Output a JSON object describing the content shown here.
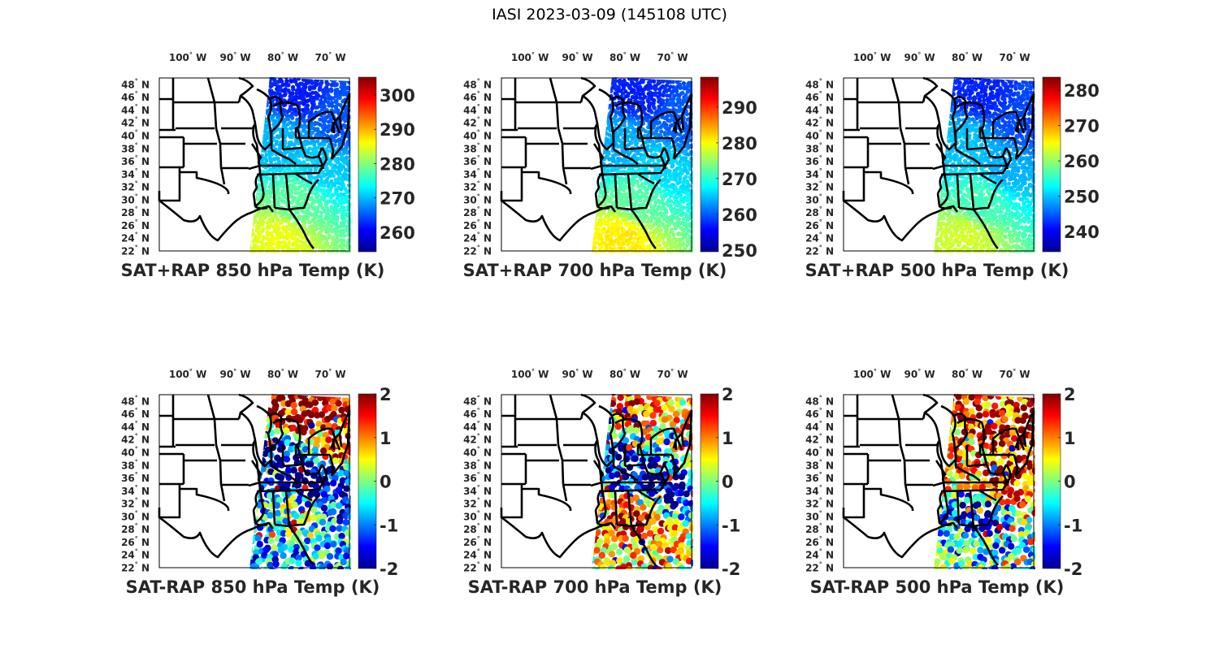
{
  "figure": {
    "title": "IASI 2023-03-09 (145108 UTC)"
  },
  "chart_data": [
    {
      "type": "heatmap",
      "kind": "satellite-swath-map",
      "title": "SAT+RAP 850 hPa Temp (K)",
      "xlabel": "",
      "ylabel": "",
      "x_ticks": [
        "100° W",
        "90° W",
        "80° W",
        "70° W"
      ],
      "x_tick_values": [
        -100,
        -90,
        -80,
        -70
      ],
      "y_ticks": [
        "48° N",
        "46° N",
        "44° N",
        "42° N",
        "40° N",
        "38° N",
        "36° N",
        "34° N",
        "32° N",
        "30° N",
        "28° N",
        "26° N",
        "24° N",
        "22° N"
      ],
      "y_tick_values": [
        48,
        46,
        44,
        42,
        40,
        38,
        36,
        34,
        32,
        30,
        28,
        26,
        24,
        22
      ],
      "lon_range": [
        -106,
        -66
      ],
      "lat_range": [
        22,
        49
      ],
      "colormap": "jet",
      "clim": [
        254.3,
        305.2
      ],
      "colorbar_ticks": [
        260,
        270,
        280,
        290,
        300
      ],
      "swath_field": {
        "north": 262,
        "northeast": 265,
        "mid_lakes": 270,
        "mid_atlantic": 271,
        "southeast": 278,
        "gulf_south": 285
      },
      "grid": false
    },
    {
      "type": "heatmap",
      "kind": "satellite-swath-map",
      "title": "SAT+RAP 700 hPa Temp (K)",
      "xlabel": "",
      "ylabel": "",
      "x_ticks": [
        "100° W",
        "90° W",
        "80° W",
        "70° W"
      ],
      "x_tick_values": [
        -100,
        -90,
        -80,
        -70
      ],
      "y_ticks": [
        "48° N",
        "46° N",
        "44° N",
        "42° N",
        "40° N",
        "38° N",
        "36° N",
        "34° N",
        "32° N",
        "30° N",
        "28° N",
        "26° N",
        "24° N",
        "22° N"
      ],
      "y_tick_values": [
        48,
        46,
        44,
        42,
        40,
        38,
        36,
        34,
        32,
        30,
        28,
        26,
        24,
        22
      ],
      "lon_range": [
        -106,
        -66
      ],
      "lat_range": [
        22,
        49
      ],
      "colormap": "jet",
      "clim": [
        249.5,
        298.4
      ],
      "colorbar_ticks": [
        250,
        260,
        270,
        280,
        290
      ],
      "swath_field": {
        "north": 257,
        "northeast": 260,
        "mid_lakes": 264,
        "mid_atlantic": 266,
        "southeast": 272,
        "gulf_south": 281
      },
      "grid": false
    },
    {
      "type": "heatmap",
      "kind": "satellite-swath-map",
      "title": "SAT+RAP 500 hPa Temp (K)",
      "xlabel": "",
      "ylabel": "",
      "x_ticks": [
        "100° W",
        "90° W",
        "80° W",
        "70° W"
      ],
      "x_tick_values": [
        -100,
        -90,
        -80,
        -70
      ],
      "y_ticks": [
        "48° N",
        "46° N",
        "44° N",
        "42° N",
        "40° N",
        "38° N",
        "36° N",
        "34° N",
        "32° N",
        "30° N",
        "28° N",
        "26° N",
        "24° N",
        "22° N"
      ],
      "y_tick_values": [
        48,
        46,
        44,
        42,
        40,
        38,
        36,
        34,
        32,
        30,
        28,
        26,
        24,
        22
      ],
      "lon_range": [
        -106,
        -66
      ],
      "lat_range": [
        22,
        49
      ],
      "colormap": "jet",
      "clim": [
        234.3,
        283.7
      ],
      "colorbar_ticks": [
        240,
        250,
        260,
        270,
        280
      ],
      "swath_field": {
        "north": 242,
        "northeast": 244,
        "mid_lakes": 250,
        "mid_atlantic": 249,
        "southeast": 256,
        "gulf_south": 263
      },
      "grid": false
    },
    {
      "type": "scatter",
      "kind": "satellite-swath-map",
      "title": "SAT-RAP 850 hPa Temp (K)",
      "xlabel": "",
      "ylabel": "",
      "x_ticks": [
        "100° W",
        "90° W",
        "80° W",
        "70° W"
      ],
      "x_tick_values": [
        -100,
        -90,
        -80,
        -70
      ],
      "y_ticks": [
        "48° N",
        "46° N",
        "44° N",
        "42° N",
        "40° N",
        "38° N",
        "36° N",
        "34° N",
        "32° N",
        "30° N",
        "28° N",
        "26° N",
        "24° N",
        "22° N"
      ],
      "y_tick_values": [
        48,
        46,
        44,
        42,
        40,
        38,
        36,
        34,
        32,
        30,
        28,
        26,
        24,
        22
      ],
      "lon_range": [
        -106,
        -66
      ],
      "lat_range": [
        22,
        49
      ],
      "colormap": "jet",
      "clim": [
        -2,
        2
      ],
      "colorbar_ticks": [
        -2,
        -1,
        0,
        1,
        2
      ],
      "swath_field": {
        "north": 2.0,
        "northeast": 1.5,
        "mid_lakes": -1.8,
        "mid_atlantic": -2.0,
        "southeast": -0.3,
        "gulf_south": -0.8
      },
      "grid": false
    },
    {
      "type": "scatter",
      "kind": "satellite-swath-map",
      "title": "SAT-RAP 700 hPa Temp (K)",
      "xlabel": "",
      "ylabel": "",
      "x_ticks": [
        "100° W",
        "90° W",
        "80° W",
        "70° W"
      ],
      "x_tick_values": [
        -100,
        -90,
        -80,
        -70
      ],
      "y_ticks": [
        "48° N",
        "46° N",
        "44° N",
        "42° N",
        "40° N",
        "38° N",
        "36° N",
        "34° N",
        "32° N",
        "30° N",
        "28° N",
        "26° N",
        "24° N",
        "22° N"
      ],
      "y_tick_values": [
        48,
        46,
        44,
        42,
        40,
        38,
        36,
        34,
        32,
        30,
        28,
        26,
        24,
        22
      ],
      "lon_range": [
        -106,
        -66
      ],
      "lat_range": [
        22,
        49
      ],
      "colormap": "jet",
      "clim": [
        -2,
        2
      ],
      "colorbar_ticks": [
        -2,
        -1,
        0,
        1,
        2
      ],
      "swath_field": {
        "north": 1.3,
        "northeast": 0.5,
        "mid_lakes": -1.6,
        "mid_atlantic": -1.9,
        "southeast": 1.6,
        "gulf_south": 0.6
      },
      "grid": false
    },
    {
      "type": "scatter",
      "kind": "satellite-swath-map",
      "title": "SAT-RAP 500 hPa Temp (K)",
      "xlabel": "",
      "ylabel": "",
      "x_ticks": [
        "100° W",
        "90° W",
        "80° W",
        "70° W"
      ],
      "x_tick_values": [
        -100,
        -90,
        -80,
        -70
      ],
      "y_ticks": [
        "48° N",
        "46° N",
        "44° N",
        "42° N",
        "40° N",
        "38° N",
        "36° N",
        "34° N",
        "32° N",
        "30° N",
        "28° N",
        "26° N",
        "24° N",
        "22° N"
      ],
      "y_tick_values": [
        48,
        46,
        44,
        42,
        40,
        38,
        36,
        34,
        32,
        30,
        28,
        26,
        24,
        22
      ],
      "lon_range": [
        -106,
        -66
      ],
      "lat_range": [
        22,
        49
      ],
      "colormap": "jet",
      "clim": [
        -2,
        2
      ],
      "colorbar_ticks": [
        -2,
        -1,
        0,
        1,
        2
      ],
      "swath_field": {
        "north": 1.4,
        "northeast": 1.6,
        "mid_lakes": 0.8,
        "mid_atlantic": 1.5,
        "southeast": -1.5,
        "gulf_south": -0.4
      },
      "grid": false
    }
  ]
}
